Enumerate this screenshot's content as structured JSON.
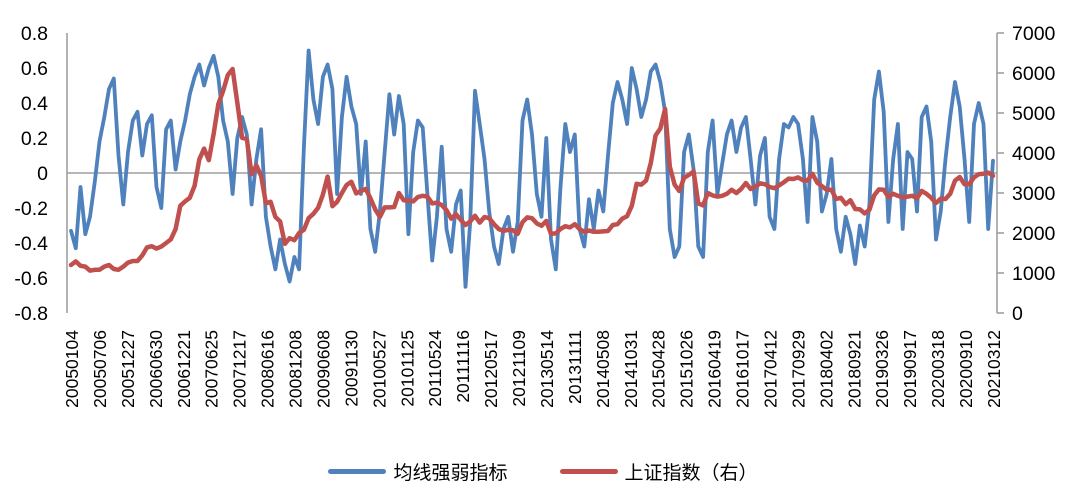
{
  "chart_data": {
    "type": "line",
    "title": "",
    "grid": "zero-line-only",
    "legend_position": "bottom",
    "axis_color": "#9E9E9E",
    "x_labels": [
      "20050104",
      "20050706",
      "20051227",
      "20060630",
      "20061221",
      "20070625",
      "20071217",
      "20080616",
      "20081208",
      "20090608",
      "20091130",
      "20100527",
      "20101125",
      "20110524",
      "20111116",
      "20120517",
      "20121109",
      "20130514",
      "20131111",
      "20140508",
      "20141031",
      "20150428",
      "20151026",
      "20160419",
      "20161017",
      "20170412",
      "20170929",
      "20180402",
      "20180921",
      "20190326",
      "20190917",
      "20200318",
      "20200910",
      "20210312"
    ],
    "left_axis": {
      "min": -0.8,
      "max": 0.8,
      "step": 0.2,
      "tick_labels": [
        "0.8",
        "0.6",
        "0.4",
        "0.2",
        "0",
        "-0.2",
        "-0.4",
        "-0.6",
        "-0.8"
      ]
    },
    "right_axis": {
      "min": 0,
      "max": 7000,
      "step": 1000,
      "tick_labels": [
        "7000",
        "6000",
        "5000",
        "4000",
        "3000",
        "2000",
        "1000",
        "0"
      ]
    },
    "series": [
      {
        "name": "均线强弱指标",
        "axis": "left",
        "color": "#4F81BD",
        "line_width": 3.8,
        "values": [
          -0.33,
          -0.43,
          -0.08,
          -0.35,
          -0.25,
          -0.05,
          0.18,
          0.32,
          0.48,
          0.54,
          0.1,
          -0.18,
          0.12,
          0.3,
          0.35,
          0.1,
          0.28,
          0.33,
          -0.08,
          -0.2,
          0.25,
          0.3,
          0.02,
          0.18,
          0.3,
          0.45,
          0.55,
          0.62,
          0.5,
          0.6,
          0.67,
          0.55,
          0.3,
          0.18,
          -0.12,
          0.2,
          0.32,
          0.22,
          -0.18,
          0.08,
          0.25,
          -0.25,
          -0.42,
          -0.55,
          -0.38,
          -0.52,
          -0.62,
          -0.48,
          -0.55,
          0.15,
          0.7,
          0.42,
          0.28,
          0.55,
          0.62,
          0.48,
          -0.12,
          0.32,
          0.55,
          0.38,
          0.28,
          -0.12,
          0.18,
          -0.32,
          -0.45,
          -0.22,
          0.12,
          0.45,
          0.22,
          0.44,
          0.28,
          -0.35,
          0.12,
          0.3,
          0.26,
          -0.12,
          -0.5,
          -0.25,
          0.15,
          -0.32,
          -0.45,
          -0.18,
          -0.1,
          -0.65,
          -0.28,
          0.47,
          0.28,
          0.08,
          -0.22,
          -0.42,
          -0.52,
          -0.32,
          -0.25,
          -0.45,
          -0.28,
          0.3,
          0.42,
          0.22,
          -0.12,
          -0.25,
          0.2,
          -0.38,
          -0.55,
          -0.08,
          0.28,
          0.12,
          0.22,
          -0.32,
          -0.42,
          -0.15,
          -0.32,
          -0.1,
          -0.22,
          0.1,
          0.4,
          0.52,
          0.42,
          0.28,
          0.6,
          0.48,
          0.32,
          0.42,
          0.58,
          0.62,
          0.52,
          0.35,
          -0.32,
          -0.48,
          -0.42,
          0.12,
          0.22,
          0.02,
          -0.42,
          -0.48,
          0.12,
          0.3,
          -0.12,
          0.05,
          0.22,
          0.3,
          0.12,
          0.26,
          0.32,
          0.08,
          -0.18,
          0.1,
          0.2,
          -0.25,
          -0.32,
          0.08,
          0.28,
          0.26,
          0.32,
          0.28,
          0.08,
          -0.28,
          0.32,
          0.18,
          -0.22,
          -0.12,
          0.08,
          -0.32,
          -0.45,
          -0.25,
          -0.35,
          -0.52,
          -0.3,
          -0.42,
          -0.18,
          0.42,
          0.58,
          0.35,
          -0.28,
          0.08,
          0.28,
          -0.32,
          0.12,
          0.08,
          -0.22,
          0.32,
          0.38,
          0.18,
          -0.38,
          -0.22,
          0.08,
          0.32,
          0.52,
          0.38,
          0.08,
          -0.28,
          0.28,
          0.4,
          0.28,
          -0.32,
          0.07
        ]
      },
      {
        "name": "上证指数（右）",
        "axis": "right",
        "color": "#C0504D",
        "line_width": 4.5,
        "values": [
          1200,
          1290,
          1180,
          1160,
          1060,
          1080,
          1080,
          1160,
          1200,
          1100,
          1080,
          1160,
          1260,
          1300,
          1300,
          1440,
          1640,
          1670,
          1610,
          1660,
          1750,
          1840,
          2100,
          2680,
          2790,
          2880,
          3180,
          3840,
          4110,
          3820,
          4470,
          5220,
          5550,
          5950,
          6100,
          5260,
          4380,
          4350,
          3470,
          3690,
          3430,
          2740,
          2780,
          2400,
          2290,
          1730,
          1870,
          1820,
          2000,
          2080,
          2370,
          2480,
          2630,
          2960,
          3410,
          2670,
          2780,
          3000,
          3200,
          3280,
          2990,
          3050,
          3100,
          2870,
          2590,
          2400,
          2640,
          2640,
          2650,
          3000,
          2820,
          2810,
          2790,
          2900,
          2930,
          2910,
          2740,
          2760,
          2700,
          2570,
          2360,
          2470,
          2330,
          2200,
          2290,
          2430,
          2260,
          2400,
          2370,
          2220,
          2100,
          2050,
          2080,
          2070,
          1980,
          2270,
          2390,
          2370,
          2240,
          2180,
          2300,
          1980,
          1990,
          2100,
          2170,
          2140,
          2220,
          2100,
          2030,
          2060,
          2030,
          2030,
          2040,
          2050,
          2200,
          2220,
          2360,
          2420,
          2680,
          3230,
          3210,
          3310,
          3750,
          4440,
          4610,
          5100,
          3660,
          3210,
          3050,
          3380,
          3450,
          3540,
          2740,
          2690,
          3000,
          2940,
          2910,
          2930,
          2980,
          3080,
          3000,
          3100,
          3250,
          3100,
          3160,
          3240,
          3220,
          3150,
          3120,
          3190,
          3270,
          3360,
          3350,
          3390,
          3320,
          3310,
          3480,
          3260,
          3170,
          3080,
          3080,
          2850,
          2880,
          2720,
          2820,
          2600,
          2590,
          2490,
          2580,
          2940,
          3090,
          3080,
          2900,
          2980,
          2930,
          2890,
          2910,
          2930,
          2870,
          3050,
          2980,
          2880,
          2750,
          2860,
          2850,
          2980,
          3310,
          3400,
          3220,
          3220,
          3390,
          3470,
          3480,
          3510,
          3430
        ]
      }
    ]
  }
}
